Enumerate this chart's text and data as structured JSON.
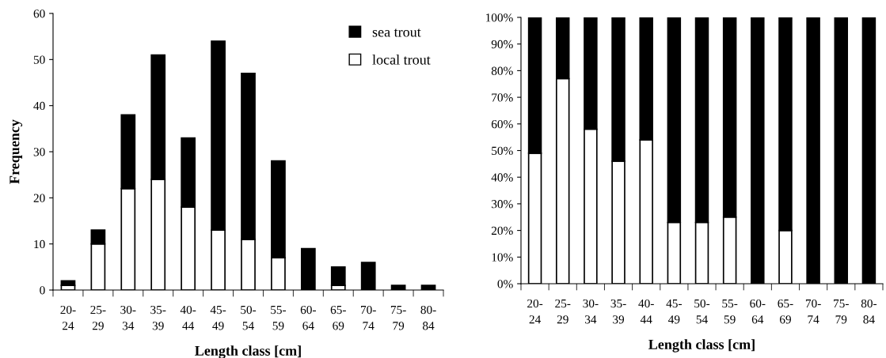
{
  "chart_data": [
    {
      "type": "bar",
      "stacked": true,
      "xlabel": "Length class [cm]",
      "ylabel": "Frequency",
      "categories": [
        "20-\n24",
        "25-\n29",
        "30-\n34",
        "35-\n39",
        "40-\n44",
        "45-\n49",
        "50-\n54",
        "55-\n59",
        "60-\n64",
        "65-\n69",
        "70-\n74",
        "75-\n79",
        "80-\n84"
      ],
      "series": [
        {
          "name": "local trout",
          "color": "#ffffff",
          "values": [
            1,
            10,
            22,
            24,
            18,
            13,
            11,
            7,
            0,
            1,
            0,
            0,
            0
          ]
        },
        {
          "name": "sea trout",
          "color": "#000000",
          "values": [
            1,
            3,
            16,
            27,
            15,
            41,
            36,
            21,
            9,
            4,
            6,
            1,
            1
          ]
        }
      ],
      "ylim": [
        0,
        60
      ],
      "yticks": [
        0,
        10,
        20,
        30,
        40,
        50,
        60
      ],
      "grid": false,
      "legend": "top right"
    },
    {
      "type": "bar",
      "stacked": true,
      "xlabel": "Length class [cm]",
      "categories": [
        "20-\n24",
        "25-\n29",
        "30-\n34",
        "35-\n39",
        "40-\n44",
        "45-\n49",
        "50-\n54",
        "55-\n59",
        "60-\n64",
        "65-\n69",
        "70-\n74",
        "75-\n79",
        "80-\n84"
      ],
      "series": [
        {
          "color": "#ffffff",
          "values": [
            49,
            77,
            58,
            46,
            54,
            23,
            23,
            25,
            0,
            20,
            0,
            0,
            0
          ]
        },
        {
          "color": "#000000",
          "values": [
            51,
            23,
            42,
            54,
            46,
            77,
            77,
            75,
            100,
            80,
            100,
            100,
            100
          ]
        }
      ],
      "ylim": [
        0,
        100
      ],
      "yticks": [
        {
          "value": 0,
          "label": "0%"
        },
        {
          "value": 10,
          "label": "10%"
        },
        {
          "value": 20,
          "label": "20%"
        },
        {
          "value": 30,
          "label": "30%"
        },
        {
          "value": 40,
          "label": "40%"
        },
        {
          "value": 50,
          "label": "50%"
        },
        {
          "value": 60,
          "label": "60%"
        },
        {
          "value": 70,
          "label": "70%"
        },
        {
          "value": 80,
          "label": "80%"
        },
        {
          "value": 90,
          "label": "90%"
        },
        {
          "value": 100,
          "label": "100%"
        }
      ],
      "grid": false
    }
  ]
}
